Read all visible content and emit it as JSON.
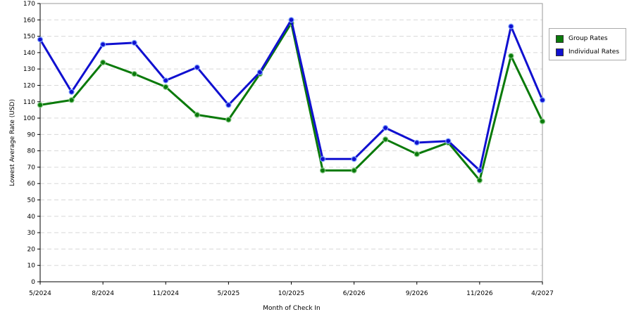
{
  "chart_data": {
    "type": "line",
    "xlabel": "Month of Check In",
    "ylabel": "Lowest Average Rate (USD)",
    "ylim": [
      0,
      170
    ],
    "y_ticks": [
      0,
      10,
      20,
      30,
      40,
      50,
      60,
      70,
      80,
      90,
      100,
      110,
      120,
      130,
      140,
      150,
      160,
      170
    ],
    "grid": "horizontal dashed",
    "legend_position": "right",
    "x_tick_labels": [
      {
        "label": "5/2024",
        "index": 0
      },
      {
        "label": "8/2024",
        "index": 2
      },
      {
        "label": "11/2024",
        "index": 4
      },
      {
        "label": "5/2025",
        "index": 6
      },
      {
        "label": "10/2025",
        "index": 8
      },
      {
        "label": "6/2026",
        "index": 10
      },
      {
        "label": "9/2026",
        "index": 12
      },
      {
        "label": "11/2026",
        "index": 14
      },
      {
        "label": "4/2027",
        "index": 16
      }
    ],
    "point_count": 17,
    "series": [
      {
        "name": "Group Rates",
        "color": "#0a7a0a",
        "values": [
          108,
          111,
          134,
          127,
          119,
          102,
          99,
          127,
          158,
          68,
          68,
          87,
          78,
          85,
          62,
          138,
          98
        ]
      },
      {
        "name": "Individual Rates",
        "color": "#1010d0",
        "values": [
          148,
          116,
          145,
          146,
          123,
          131,
          108,
          128,
          160,
          75,
          75,
          94,
          85,
          86,
          68,
          156,
          111
        ]
      }
    ]
  }
}
